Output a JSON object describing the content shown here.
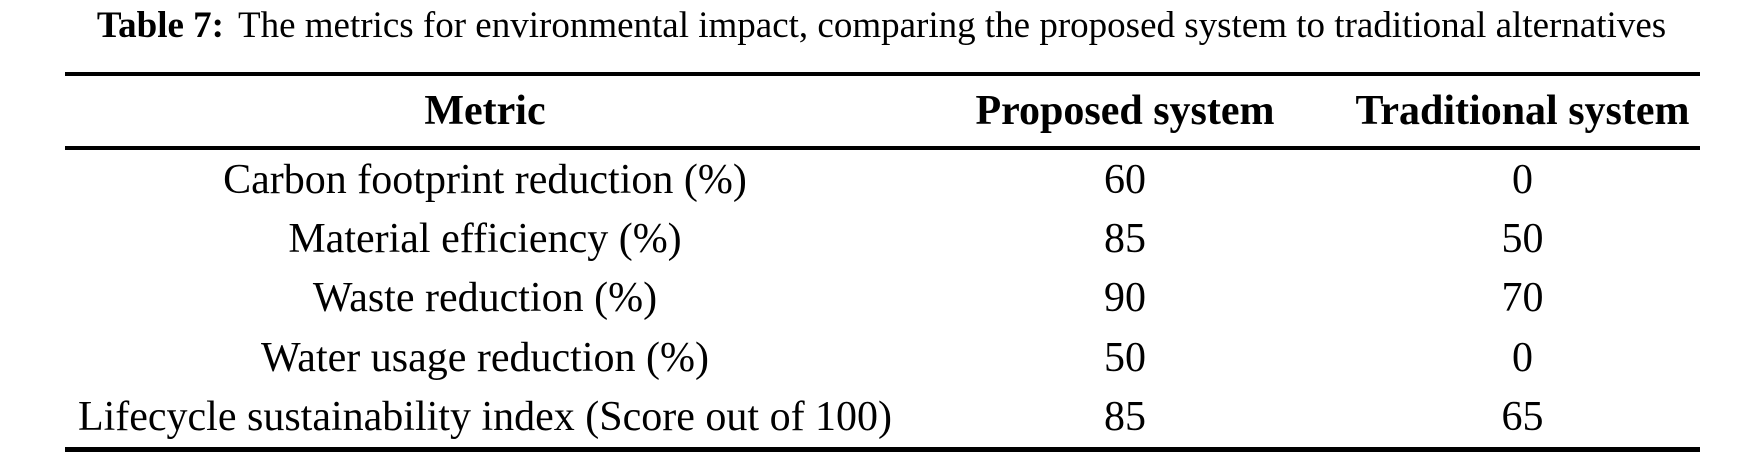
{
  "caption": {
    "label": "Table 7:",
    "text": "The metrics for environmental impact, comparing the proposed system to traditional alternatives"
  },
  "table": {
    "columns": [
      "Metric",
      "Proposed system",
      "Traditional system"
    ],
    "rows": [
      {
        "metric": "Carbon footprint reduction (%)",
        "proposed": "60",
        "traditional": "0"
      },
      {
        "metric": "Material efficiency (%)",
        "proposed": "85",
        "traditional": "50"
      },
      {
        "metric": "Waste reduction (%)",
        "proposed": "90",
        "traditional": "70"
      },
      {
        "metric": "Water usage reduction (%)",
        "proposed": "50",
        "traditional": "0"
      },
      {
        "metric": "Lifecycle sustainability index (Score out of 100)",
        "proposed": "85",
        "traditional": "65"
      }
    ]
  },
  "colors": {
    "text": "#000000",
    "background": "#ffffff",
    "rule": "#000000"
  }
}
